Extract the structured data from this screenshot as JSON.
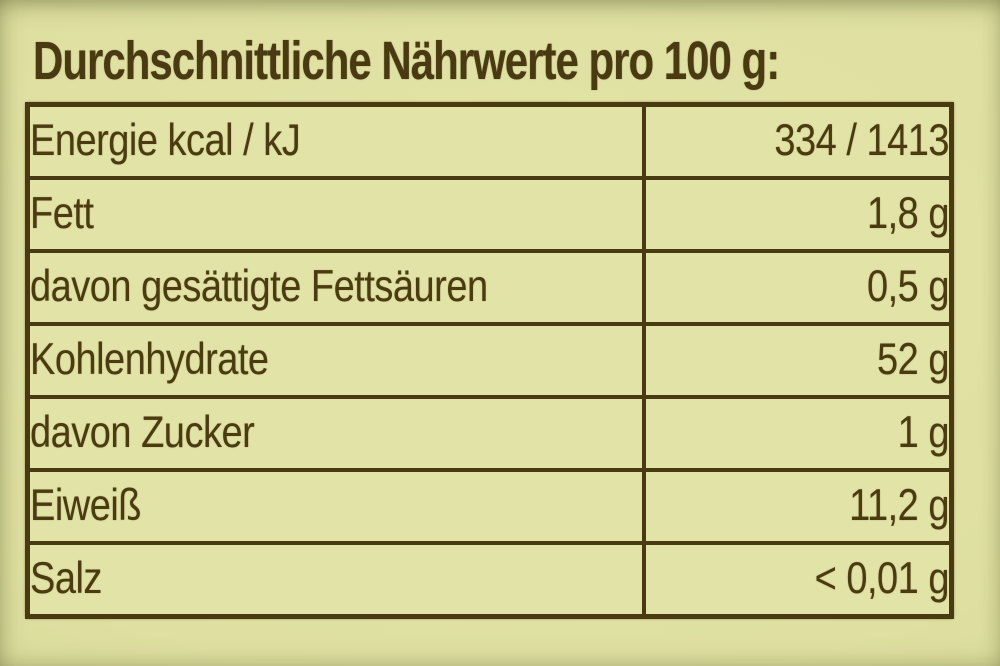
{
  "title": "Durchschnittliche Nährwerte pro 100 g:",
  "table": {
    "rows": [
      {
        "label": "Energie kcal / kJ",
        "value": "334 / 1413"
      },
      {
        "label": "Fett",
        "value": "1,8 g"
      },
      {
        "label": "davon gesättigte Fettsäuren",
        "value": "0,5 g"
      },
      {
        "label": "Kohlenhydrate",
        "value": "52 g"
      },
      {
        "label": "davon Zucker",
        "value": "1 g"
      },
      {
        "label": "Eiweiß",
        "value": "11,2 g"
      },
      {
        "label": "Salz",
        "value": "< 0,01 g"
      }
    ]
  },
  "colors": {
    "background": "#dedfa0",
    "cell_background": "#e2e3a6",
    "text": "#4b3b10",
    "border": "#4a3a12"
  }
}
